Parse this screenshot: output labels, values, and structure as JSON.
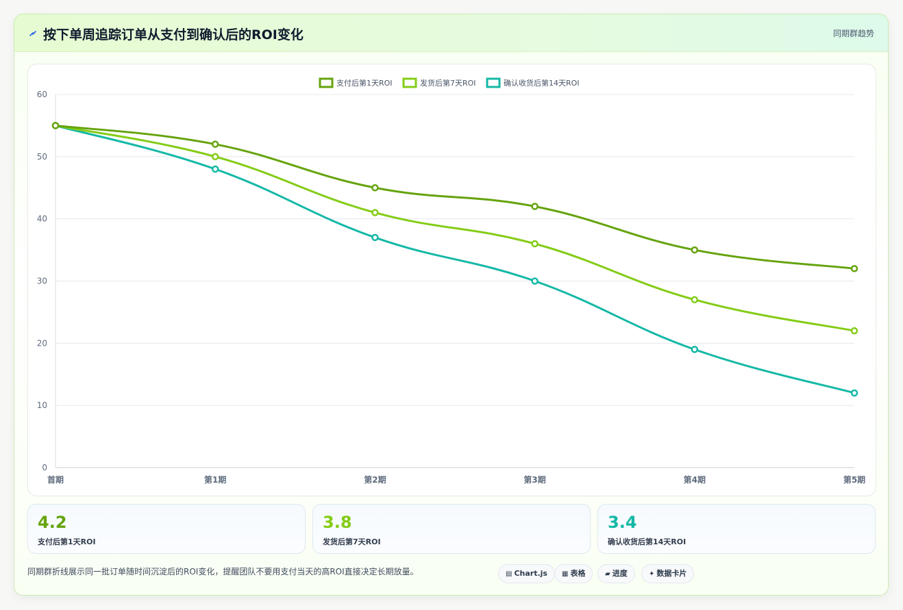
{
  "header": {
    "title": "按下单周追踪订单从支付到确认后的ROI变化",
    "subtitle": "同期群趋势",
    "icon": "lightning-icon"
  },
  "colors": {
    "series1": "#65a30d",
    "series2": "#84cc16",
    "series3": "#14b8a6",
    "grid": "#e5e8ee",
    "tick": "#5f6b7d"
  },
  "chart_data": {
    "type": "line",
    "categories": [
      "首期",
      "第1期",
      "第2期",
      "第3期",
      "第4期",
      "第5期"
    ],
    "series": [
      {
        "name": "支付后第1天ROI",
        "values": [
          55,
          52,
          45,
          42,
          35,
          32
        ]
      },
      {
        "name": "发货后第7天ROI",
        "values": [
          55,
          50,
          41,
          36,
          27,
          22
        ]
      },
      {
        "name": "确认收货后第14天ROI",
        "values": [
          55,
          48,
          37,
          30,
          19,
          12
        ]
      }
    ],
    "ylim": [
      0,
      60
    ],
    "yticks": [
      0,
      10,
      20,
      30,
      40,
      50,
      60
    ],
    "grid": true,
    "legend": "top-center",
    "title": "",
    "xlabel": "",
    "ylabel": ""
  },
  "stats": [
    {
      "value": "4.2",
      "label": "支付后第1天ROI"
    },
    {
      "value": "3.8",
      "label": "发货后第7天ROI"
    },
    {
      "value": "3.4",
      "label": "确认收货后第14天ROI"
    }
  ],
  "footer": {
    "note": "同期群折线展示同一批订单随时间沉淀后的ROI变化，提醒团队不要用支付当天的高ROI直接决定长期放量。",
    "pills": [
      {
        "icon": "chart-icon",
        "label": "Chart.js"
      },
      {
        "icon": "table-icon",
        "label": "表格"
      },
      {
        "icon": "progress-icon",
        "label": "进度"
      },
      {
        "icon": "sparkle-icon",
        "label": "数据卡片"
      }
    ]
  }
}
